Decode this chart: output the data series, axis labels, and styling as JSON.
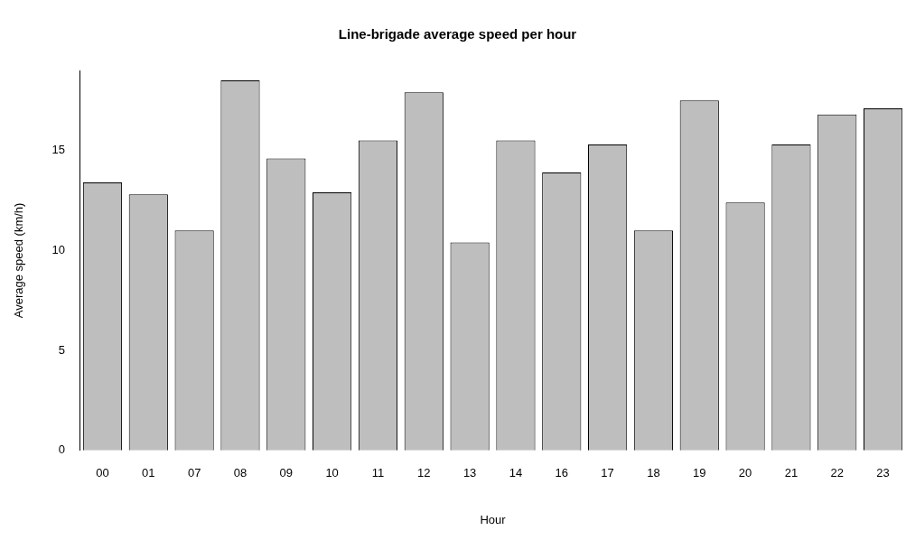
{
  "chart_data": {
    "type": "bar",
    "title": "Line-brigade average speed per hour",
    "xlabel": "Hour",
    "ylabel": "Average speed (km/h)",
    "categories": [
      "00",
      "01",
      "07",
      "08",
      "09",
      "10",
      "11",
      "12",
      "13",
      "14",
      "16",
      "17",
      "18",
      "19",
      "20",
      "21",
      "22",
      "23"
    ],
    "values": [
      13.4,
      12.8,
      11.0,
      18.5,
      14.6,
      12.9,
      15.5,
      17.9,
      10.4,
      15.5,
      13.9,
      15.3,
      11.0,
      17.5,
      12.4,
      15.3,
      16.8,
      17.1
    ],
    "color": "#bebebe",
    "ylim": [
      0,
      19
    ],
    "yticks": [
      0,
      5,
      10,
      15
    ],
    "grid": false,
    "legend": false
  }
}
